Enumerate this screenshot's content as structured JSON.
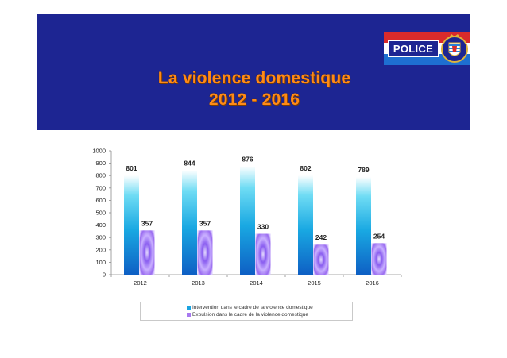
{
  "slide": {
    "title_line1": "La violence domestique",
    "title_line2": "2012 - 2016",
    "logo_text": "POLICE",
    "banner_color": "#1d2592",
    "title_color": "#ff8a17"
  },
  "chart_data": {
    "type": "bar",
    "categories": [
      "2012",
      "2013",
      "2014",
      "2015",
      "2016"
    ],
    "series": [
      {
        "name": "Intervention dans le cadre de la violence domestique",
        "values": [
          801,
          844,
          876,
          802,
          789
        ],
        "color": "#1aa3e0"
      },
      {
        "name": "Expulsion dans le cadre de la violence domestique",
        "values": [
          357,
          357,
          330,
          242,
          254
        ],
        "color": "#a879f0"
      }
    ],
    "ylim": [
      0,
      1000
    ],
    "yticks": [
      0,
      100,
      200,
      300,
      400,
      500,
      600,
      700,
      800,
      900,
      1000
    ],
    "title": "",
    "xlabel": "",
    "ylabel": "",
    "legend": "bottom",
    "grid": false
  }
}
